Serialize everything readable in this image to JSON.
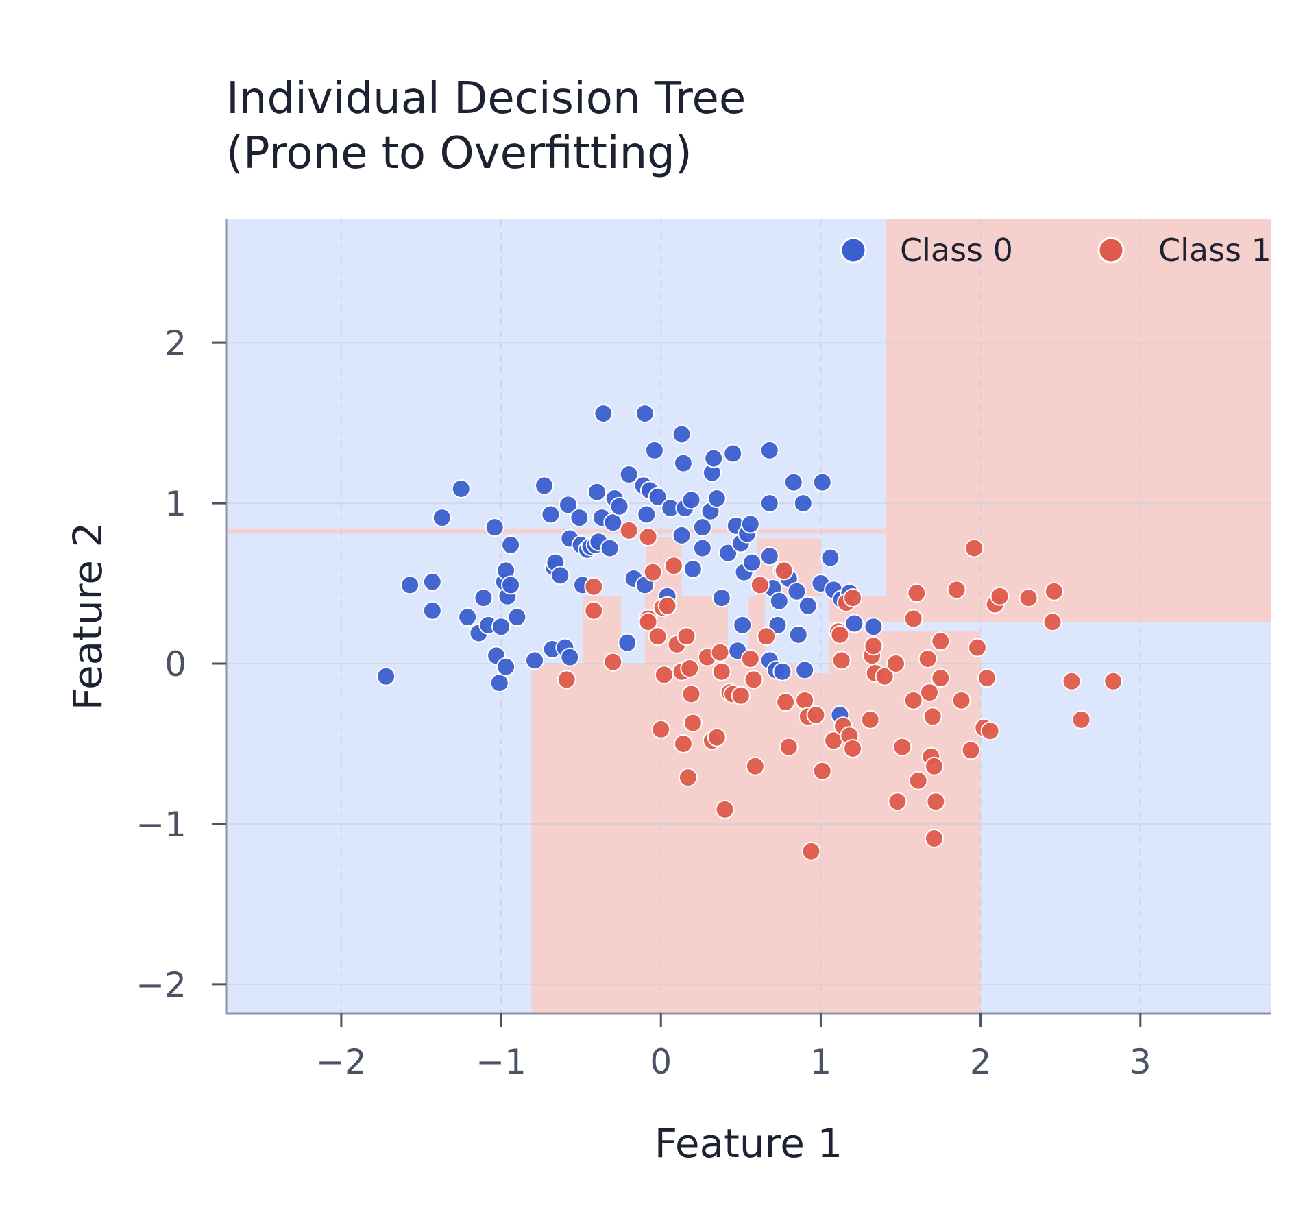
{
  "chart_data": {
    "type": "scatter",
    "title_lines": [
      "Individual Decision Tree",
      "(Prone to Overfitting)"
    ],
    "xlabel": "Feature 1",
    "ylabel": "Feature 2",
    "xlim": [
      -2.72,
      3.82
    ],
    "ylim": [
      -2.18,
      2.77
    ],
    "xticks": [
      {
        "value": -2,
        "label": "−2"
      },
      {
        "value": -1,
        "label": "−1"
      },
      {
        "value": 0,
        "label": "0"
      },
      {
        "value": 1,
        "label": "1"
      },
      {
        "value": 2,
        "label": "2"
      },
      {
        "value": 3,
        "label": "3"
      }
    ],
    "yticks": [
      {
        "value": -2,
        "label": "−2"
      },
      {
        "value": -1,
        "label": "−1"
      },
      {
        "value": 0,
        "label": "0"
      },
      {
        "value": 1,
        "label": "1"
      },
      {
        "value": 2,
        "label": "2"
      }
    ],
    "grid": true,
    "legend_position": "top-right",
    "colors": {
      "class0_point": "#3b5fcf",
      "class1_point": "#de5b4b",
      "class0_region": "#dce6fc",
      "class1_region": "#f6d0cc",
      "axis": "#8a93a8",
      "grid": "#c9cfdc"
    },
    "series": [
      {
        "name": "Class 0",
        "points": [
          [
            -1.72,
            -0.08
          ],
          [
            -1.57,
            0.49
          ],
          [
            -1.43,
            0.51
          ],
          [
            -1.43,
            0.33
          ],
          [
            -1.37,
            0.91
          ],
          [
            -1.25,
            1.09
          ],
          [
            -1.21,
            0.29
          ],
          [
            -1.14,
            0.19
          ],
          [
            -1.11,
            0.41
          ],
          [
            -1.08,
            0.24
          ],
          [
            -1.04,
            0.85
          ],
          [
            -1.03,
            0.05
          ],
          [
            -1.01,
            -0.12
          ],
          [
            -1.0,
            0.23
          ],
          [
            -0.98,
            0.51
          ],
          [
            -0.97,
            0.58
          ],
          [
            -0.96,
            0.42
          ],
          [
            -0.97,
            -0.02
          ],
          [
            -0.94,
            0.49
          ],
          [
            -0.94,
            0.74
          ],
          [
            -0.9,
            0.29
          ],
          [
            -0.79,
            0.02
          ],
          [
            -0.73,
            1.11
          ],
          [
            -0.69,
            0.93
          ],
          [
            -0.68,
            0.09
          ],
          [
            -0.67,
            0.6
          ],
          [
            -0.66,
            0.63
          ],
          [
            -0.63,
            0.55
          ],
          [
            -0.6,
            0.1
          ],
          [
            -0.57,
            0.04
          ],
          [
            -0.58,
            0.99
          ],
          [
            -0.57,
            0.78
          ],
          [
            -0.51,
            0.91
          ],
          [
            -0.5,
            0.74
          ],
          [
            -0.49,
            0.49
          ],
          [
            -0.46,
            0.71
          ],
          [
            -0.44,
            0.73
          ],
          [
            -0.41,
            0.74
          ],
          [
            -0.4,
            1.07
          ],
          [
            -0.39,
            0.76
          ],
          [
            -0.37,
            0.91
          ],
          [
            -0.36,
            1.56
          ],
          [
            -0.32,
            0.72
          ],
          [
            -0.3,
            0.88
          ],
          [
            -0.29,
            1.03
          ],
          [
            -0.26,
            0.98
          ],
          [
            -0.21,
            0.13
          ],
          [
            -0.2,
            1.18
          ],
          [
            -0.17,
            0.53
          ],
          [
            -0.11,
            1.11
          ],
          [
            -0.1,
            0.49
          ],
          [
            -0.1,
            1.56
          ],
          [
            -0.09,
            0.93
          ],
          [
            -0.07,
            1.08
          ],
          [
            -0.04,
            1.33
          ],
          [
            -0.02,
            1.04
          ],
          [
            0.04,
            0.42
          ],
          [
            0.06,
            0.97
          ],
          [
            0.13,
            1.43
          ],
          [
            0.13,
            0.8
          ],
          [
            0.14,
            1.25
          ],
          [
            0.15,
            0.97
          ],
          [
            0.19,
            1.02
          ],
          [
            0.2,
            0.59
          ],
          [
            0.26,
            0.85
          ],
          [
            0.26,
            0.72
          ],
          [
            0.31,
            0.95
          ],
          [
            0.32,
            1.19
          ],
          [
            0.33,
            1.28
          ],
          [
            0.35,
            1.03
          ],
          [
            0.38,
            0.41
          ],
          [
            0.42,
            0.69
          ],
          [
            0.45,
            1.31
          ],
          [
            0.47,
            0.86
          ],
          [
            0.48,
            0.08
          ],
          [
            0.5,
            0.75
          ],
          [
            0.51,
            0.24
          ],
          [
            0.52,
            0.57
          ],
          [
            0.54,
            0.81
          ],
          [
            0.56,
            0.87
          ],
          [
            0.57,
            0.63
          ],
          [
            0.68,
            1.33
          ],
          [
            0.68,
            1.0
          ],
          [
            0.68,
            0.02
          ],
          [
            0.68,
            0.67
          ],
          [
            0.7,
            0.47
          ],
          [
            0.72,
            -0.04
          ],
          [
            0.73,
            0.24
          ],
          [
            0.74,
            0.39
          ],
          [
            0.76,
            -0.05
          ],
          [
            0.76,
            0.58
          ],
          [
            0.8,
            0.53
          ],
          [
            0.83,
            1.13
          ],
          [
            0.85,
            0.45
          ],
          [
            0.86,
            0.18
          ],
          [
            0.89,
            1.0
          ],
          [
            0.9,
            -0.04
          ],
          [
            0.92,
            0.36
          ],
          [
            1.0,
            0.5
          ],
          [
            1.01,
            1.13
          ],
          [
            1.06,
            0.66
          ],
          [
            1.08,
            0.46
          ],
          [
            1.13,
            0.4
          ],
          [
            1.18,
            0.44
          ],
          [
            1.21,
            0.25
          ],
          [
            1.33,
            0.23
          ],
          [
            1.12,
            -0.32
          ]
        ]
      },
      {
        "name": "Class 1",
        "points": [
          [
            -0.59,
            -0.1
          ],
          [
            -0.42,
            0.48
          ],
          [
            -0.42,
            0.33
          ],
          [
            -0.3,
            0.01
          ],
          [
            -0.2,
            0.83
          ],
          [
            -0.08,
            0.79
          ],
          [
            -0.08,
            0.28
          ],
          [
            -0.08,
            0.26
          ],
          [
            -0.05,
            0.57
          ],
          [
            -0.02,
            0.17
          ],
          [
            -0.0,
            -0.41
          ],
          [
            0.01,
            0.35
          ],
          [
            0.02,
            -0.07
          ],
          [
            0.04,
            0.36
          ],
          [
            0.08,
            0.61
          ],
          [
            0.1,
            0.12
          ],
          [
            0.13,
            -0.05
          ],
          [
            0.14,
            -0.5
          ],
          [
            0.16,
            0.17
          ],
          [
            0.17,
            -0.71
          ],
          [
            0.18,
            -0.03
          ],
          [
            0.19,
            -0.19
          ],
          [
            0.2,
            -0.37
          ],
          [
            0.29,
            0.04
          ],
          [
            0.32,
            -0.48
          ],
          [
            0.35,
            -0.46
          ],
          [
            0.37,
            0.07
          ],
          [
            0.38,
            -0.05
          ],
          [
            0.4,
            -0.91
          ],
          [
            0.43,
            -0.18
          ],
          [
            0.45,
            -0.19
          ],
          [
            0.5,
            -0.2
          ],
          [
            0.56,
            0.03
          ],
          [
            0.58,
            -0.1
          ],
          [
            0.59,
            -0.64
          ],
          [
            0.62,
            0.49
          ],
          [
            0.66,
            0.17
          ],
          [
            0.77,
            0.58
          ],
          [
            0.78,
            -0.24
          ],
          [
            0.8,
            -0.52
          ],
          [
            0.9,
            -0.23
          ],
          [
            0.92,
            -0.33
          ],
          [
            0.94,
            -1.17
          ],
          [
            0.97,
            -0.32
          ],
          [
            1.01,
            -0.67
          ],
          [
            1.08,
            -0.48
          ],
          [
            1.11,
            0.2
          ],
          [
            1.12,
            0.18
          ],
          [
            1.13,
            0.02
          ],
          [
            1.14,
            -0.39
          ],
          [
            1.16,
            0.38
          ],
          [
            1.18,
            -0.45
          ],
          [
            1.2,
            -0.53
          ],
          [
            1.2,
            0.41
          ],
          [
            1.31,
            -0.35
          ],
          [
            1.32,
            0.05
          ],
          [
            1.33,
            0.11
          ],
          [
            1.34,
            -0.06
          ],
          [
            1.4,
            -0.08
          ],
          [
            1.47,
            0.0
          ],
          [
            1.48,
            -0.86
          ],
          [
            1.51,
            -0.52
          ],
          [
            1.58,
            -0.23
          ],
          [
            1.58,
            0.28
          ],
          [
            1.6,
            0.44
          ],
          [
            1.61,
            -0.73
          ],
          [
            1.67,
            0.03
          ],
          [
            1.68,
            -0.18
          ],
          [
            1.69,
            -0.58
          ],
          [
            1.71,
            -0.64
          ],
          [
            1.7,
            -0.33
          ],
          [
            1.71,
            -1.09
          ],
          [
            1.72,
            -0.86
          ],
          [
            1.75,
            -0.09
          ],
          [
            1.75,
            0.14
          ],
          [
            1.85,
            0.46
          ],
          [
            1.88,
            -0.23
          ],
          [
            1.94,
            -0.54
          ],
          [
            1.96,
            0.72
          ],
          [
            1.98,
            0.1
          ],
          [
            2.02,
            -0.4
          ],
          [
            2.04,
            -0.09
          ],
          [
            2.06,
            -0.42
          ],
          [
            2.09,
            0.37
          ],
          [
            2.12,
            0.42
          ],
          [
            2.3,
            0.41
          ],
          [
            2.45,
            0.26
          ],
          [
            2.46,
            0.45
          ],
          [
            2.57,
            -0.11
          ],
          [
            2.63,
            -0.35
          ],
          [
            2.83,
            -0.11
          ]
        ]
      }
    ]
  }
}
